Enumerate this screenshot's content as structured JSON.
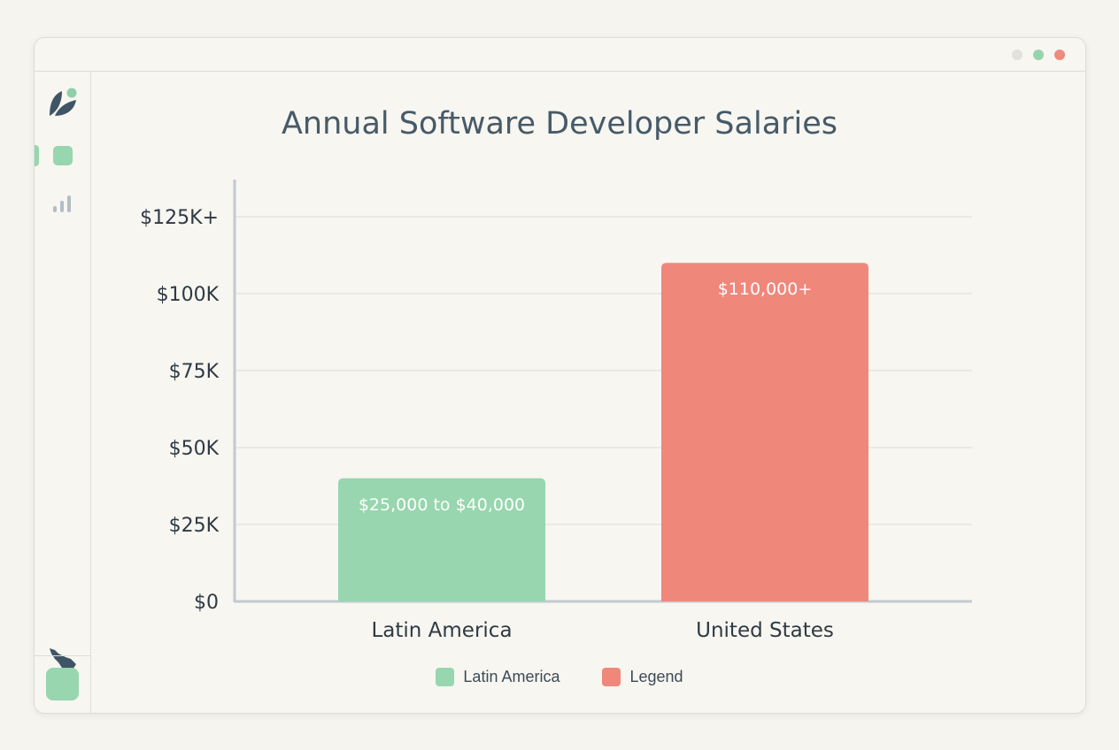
{
  "window": {
    "controls": [
      "minimize",
      "maximize",
      "close"
    ],
    "control_colors": [
      "#e2e1dc",
      "#97d4ac",
      "#ee8a7e"
    ]
  },
  "sidebar": {
    "icons": [
      "leaf-logo-icon",
      "dashboard-icon",
      "bar-chart-icon",
      "latin-america-map-icon",
      "user-square-icon"
    ]
  },
  "colors": {
    "latam": "#97d6ae",
    "us": "#f0877b",
    "grid": "#dcdcd8",
    "axis": "#c3c9cf",
    "text": "#2f3a44"
  },
  "chart_data": {
    "type": "bar",
    "title": "Annual Software Developer Salaries",
    "xlabel": "",
    "ylabel": "",
    "categories": [
      "Latin America",
      "United States"
    ],
    "values": [
      40000,
      110000
    ],
    "value_labels": [
      "$25,000 to $40,000",
      "$110,000+"
    ],
    "ylim": [
      0,
      125000
    ],
    "yticks": [
      0,
      25000,
      50000,
      75000,
      100000,
      125000
    ],
    "ytick_labels": [
      "$0",
      "$25K",
      "$50K",
      "$75K",
      "$100K",
      "$125K+"
    ],
    "grid": true,
    "legend": {
      "placement": "bottom",
      "entries": [
        "Latin America",
        "Legend"
      ]
    }
  }
}
